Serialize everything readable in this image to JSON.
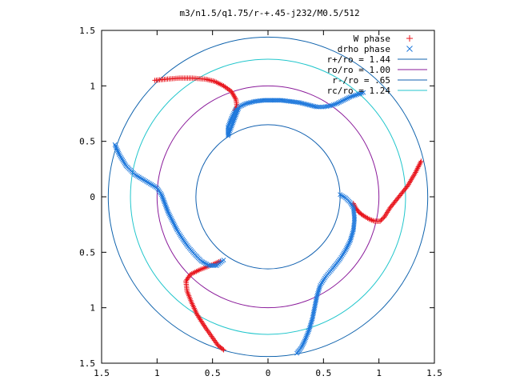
{
  "chart_data": {
    "type": "scatter",
    "title": "m3/n1.5/q1.75/r-+.45-j232/M0.5/512",
    "xlabel": "",
    "ylabel": "",
    "xlim": [
      -1.5,
      1.5
    ],
    "ylim": [
      -1.5,
      1.5
    ],
    "x_ticks": [
      -1.5,
      -1,
      -0.5,
      0,
      0.5,
      1,
      1.5
    ],
    "x_tick_labels": [
      "1.5",
      "1",
      "0.5",
      "0",
      "0.5",
      "1",
      "1.5"
    ],
    "y_ticks": [
      1.5,
      1,
      0.5,
      0,
      -0.5,
      -1,
      -1.5
    ],
    "y_tick_labels": [
      "1.5",
      "1",
      "0.5",
      "0",
      "0.5",
      "1",
      "1.5"
    ],
    "grid": false,
    "legend_position": "top-right",
    "circles": [
      {
        "name": "r+/ro = 1.44",
        "radius": 1.44,
        "color": "#0f63ad"
      },
      {
        "name": "ro/ro = 1.00",
        "radius": 1.0,
        "color": "#8a1a9a"
      },
      {
        "name": "r-/ro = .65",
        "radius": 0.65,
        "color": "#1060b0"
      },
      {
        "name": "rc/ro = 1.24",
        "radius": 1.24,
        "color": "#22c6cc"
      }
    ],
    "series": [
      {
        "name": "W phase",
        "marker": "+",
        "color": "#e8141c",
        "arms": [
          [
            [
              -1.02,
              1.05
            ],
            [
              -0.92,
              1.06
            ],
            [
              -0.8,
              1.07
            ],
            [
              -0.68,
              1.07
            ],
            [
              -0.56,
              1.06
            ],
            [
              -0.48,
              1.04
            ],
            [
              -0.4,
              1.0
            ],
            [
              -0.33,
              0.95
            ],
            [
              -0.29,
              0.88
            ],
            [
              -0.28,
              0.82
            ],
            [
              -0.3,
              0.78
            ]
          ],
          [
            [
              1.38,
              0.32
            ],
            [
              1.33,
              0.22
            ],
            [
              1.26,
              0.1
            ],
            [
              1.18,
              0.0
            ],
            [
              1.1,
              -0.1
            ],
            [
              1.05,
              -0.18
            ],
            [
              1.01,
              -0.22
            ],
            [
              0.96,
              -0.22
            ],
            [
              0.91,
              -0.2
            ],
            [
              0.86,
              -0.17
            ],
            [
              0.82,
              -0.14
            ],
            [
              0.79,
              -0.1
            ],
            [
              0.77,
              -0.06
            ]
          ],
          [
            [
              -0.43,
              -0.58
            ],
            [
              -0.52,
              -0.62
            ],
            [
              -0.62,
              -0.66
            ],
            [
              -0.7,
              -0.7
            ],
            [
              -0.74,
              -0.76
            ],
            [
              -0.73,
              -0.85
            ],
            [
              -0.69,
              -0.95
            ],
            [
              -0.64,
              -1.06
            ],
            [
              -0.57,
              -1.17
            ],
            [
              -0.5,
              -1.27
            ],
            [
              -0.45,
              -1.34
            ],
            [
              -0.4,
              -1.38
            ]
          ]
        ]
      },
      {
        "name": "drho phase",
        "marker": "x",
        "color": "#1e78dc",
        "arms": [
          [
            [
              -0.29,
              0.79
            ],
            [
              -0.33,
              0.71
            ],
            [
              -0.36,
              0.63
            ],
            [
              -0.36,
              0.55
            ],
            [
              -0.26,
              0.81
            ],
            [
              -0.2,
              0.84
            ],
            [
              -0.12,
              0.86
            ],
            [
              -0.04,
              0.87
            ],
            [
              0.04,
              0.87
            ],
            [
              0.12,
              0.87
            ],
            [
              0.2,
              0.86
            ],
            [
              0.28,
              0.85
            ],
            [
              0.36,
              0.83
            ],
            [
              0.44,
              0.81
            ],
            [
              0.5,
              0.81
            ],
            [
              0.56,
              0.82
            ],
            [
              0.62,
              0.84
            ],
            [
              0.68,
              0.87
            ],
            [
              0.74,
              0.9
            ],
            [
              0.8,
              0.92
            ],
            [
              0.86,
              0.94
            ]
          ],
          [
            [
              -1.38,
              0.47
            ],
            [
              -1.34,
              0.38
            ],
            [
              -1.28,
              0.28
            ],
            [
              -1.2,
              0.2
            ],
            [
              -1.1,
              0.14
            ],
            [
              -1.0,
              0.08
            ],
            [
              -0.96,
              0.02
            ],
            [
              -0.93,
              -0.06
            ],
            [
              -0.9,
              -0.14
            ],
            [
              -0.86,
              -0.22
            ],
            [
              -0.82,
              -0.3
            ],
            [
              -0.77,
              -0.38
            ],
            [
              -0.72,
              -0.45
            ],
            [
              -0.66,
              -0.52
            ],
            [
              -0.6,
              -0.58
            ],
            [
              -0.53,
              -0.62
            ],
            [
              -0.46,
              -0.62
            ],
            [
              -0.4,
              -0.57
            ]
          ],
          [
            [
              0.65,
              0.02
            ],
            [
              0.7,
              -0.01
            ],
            [
              0.74,
              -0.05
            ],
            [
              0.77,
              -0.1
            ],
            [
              0.78,
              -0.2
            ],
            [
              0.77,
              -0.3
            ],
            [
              0.74,
              -0.4
            ],
            [
              0.7,
              -0.48
            ],
            [
              0.65,
              -0.56
            ],
            [
              0.58,
              -0.65
            ],
            [
              0.52,
              -0.72
            ],
            [
              0.47,
              -0.8
            ],
            [
              0.44,
              -0.9
            ],
            [
              0.42,
              -1.0
            ],
            [
              0.4,
              -1.1
            ],
            [
              0.37,
              -1.2
            ],
            [
              0.33,
              -1.3
            ],
            [
              0.3,
              -1.36
            ],
            [
              0.26,
              -1.41
            ]
          ]
        ]
      }
    ]
  }
}
